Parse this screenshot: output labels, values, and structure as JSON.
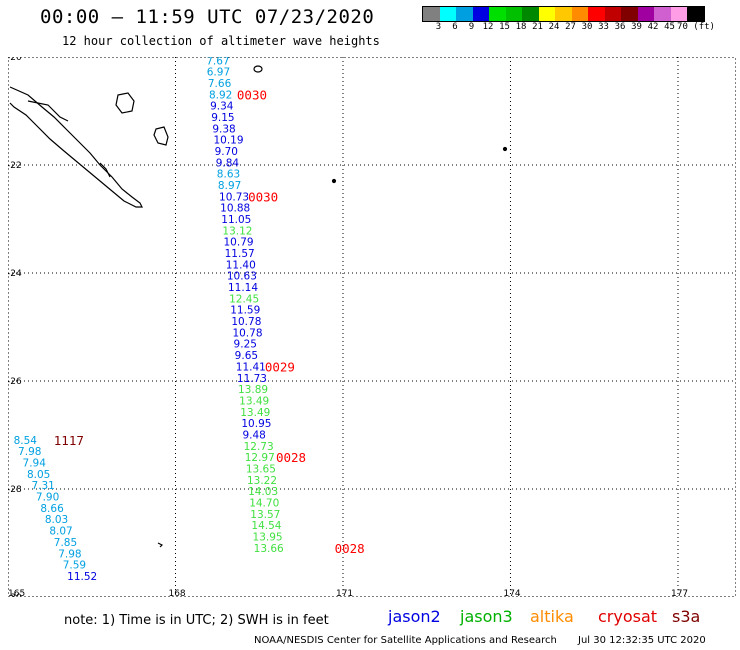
{
  "header": {
    "title": "00:00 – 11:59 UTC 07/23/2020",
    "subtitle": "12 hour collection of altimeter wave heights"
  },
  "colorbar": {
    "swatches": [
      "#808080",
      "#00ffff",
      "#00a0e0",
      "#0000e0",
      "#00e000",
      "#00c000",
      "#008800",
      "#ffff00",
      "#ffc800",
      "#ff8c00",
      "#ff0000",
      "#c00000",
      "#800000",
      "#a000a0",
      "#d060d0",
      "#ff9ee6",
      "#000000"
    ],
    "labels": [
      "3",
      "6",
      "9",
      "12",
      "15",
      "18",
      "21",
      "24",
      "27",
      "30",
      "33",
      "36",
      "39",
      "42",
      "45",
      "70 (ft)"
    ]
  },
  "map": {
    "lon_ticks": [
      "165",
      "168",
      "171",
      "174",
      "177"
    ],
    "lat_ticks": [
      "-20",
      "-22",
      "-24",
      "-26",
      "-28",
      "-30"
    ],
    "lon_range": [
      165,
      178
    ],
    "lat_range": [
      -20,
      -30
    ]
  },
  "tracks": [
    {
      "satellite": "jason2-track-a",
      "points": [
        {
          "lon": 168.55,
          "lat": -20.06,
          "v": "7.67",
          "c": "#00a0e0"
        },
        {
          "lon": 168.56,
          "lat": -20.27,
          "v": "6.97",
          "c": "#00a0e0"
        },
        {
          "lon": 168.58,
          "lat": -20.48,
          "v": "7.66",
          "c": "#00a0e0"
        },
        {
          "lon": 168.6,
          "lat": -20.69,
          "v": "8.92",
          "c": "#00a0e0"
        },
        {
          "lon": 168.62,
          "lat": -20.9,
          "v": "9.34",
          "c": "#0000e0"
        },
        {
          "lon": 168.64,
          "lat": -21.11,
          "v": "9.15",
          "c": "#0000e0"
        },
        {
          "lon": 168.66,
          "lat": -21.32,
          "v": "9.38",
          "c": "#0000e0"
        },
        {
          "lon": 168.68,
          "lat": -21.53,
          "v": "10.19",
          "c": "#0000e0"
        },
        {
          "lon": 168.7,
          "lat": -21.74,
          "v": "9.70",
          "c": "#0000e0"
        },
        {
          "lon": 168.72,
          "lat": -21.95,
          "v": "9.84",
          "c": "#0000e0"
        },
        {
          "lon": 168.74,
          "lat": -22.16,
          "v": "8.63",
          "c": "#00a0e0"
        },
        {
          "lon": 168.76,
          "lat": -22.37,
          "v": "8.97",
          "c": "#00a0e0"
        },
        {
          "lon": 168.78,
          "lat": -22.58,
          "v": "10.73",
          "c": "#0000e0"
        },
        {
          "lon": 168.8,
          "lat": -22.79,
          "v": "10.88",
          "c": "#0000e0"
        },
        {
          "lon": 168.82,
          "lat": -23.0,
          "v": "11.05",
          "c": "#0000e0"
        },
        {
          "lon": 168.84,
          "lat": -23.21,
          "v": "13.12",
          "c": "#40e040"
        },
        {
          "lon": 168.86,
          "lat": -23.42,
          "v": "10.79",
          "c": "#0000e0"
        },
        {
          "lon": 168.88,
          "lat": -23.63,
          "v": "11.57",
          "c": "#0000e0"
        },
        {
          "lon": 168.9,
          "lat": -23.84,
          "v": "11.40",
          "c": "#0000e0"
        },
        {
          "lon": 168.92,
          "lat": -24.05,
          "v": "10.63",
          "c": "#0000e0"
        },
        {
          "lon": 168.94,
          "lat": -24.26,
          "v": "11.14",
          "c": "#0000e0"
        },
        {
          "lon": 168.96,
          "lat": -24.47,
          "v": "12.45",
          "c": "#40e040"
        },
        {
          "lon": 168.98,
          "lat": -24.68,
          "v": "11.59",
          "c": "#0000e0"
        },
        {
          "lon": 169.0,
          "lat": -24.89,
          "v": "10.78",
          "c": "#0000e0"
        },
        {
          "lon": 169.02,
          "lat": -25.1,
          "v": "10.78",
          "c": "#0000e0"
        },
        {
          "lon": 169.04,
          "lat": -25.31,
          "v": "9.25",
          "c": "#0000e0"
        },
        {
          "lon": 169.06,
          "lat": -25.52,
          "v": "9.65",
          "c": "#0000e0"
        },
        {
          "lon": 169.08,
          "lat": -25.73,
          "v": "11.41",
          "c": "#0000e0"
        },
        {
          "lon": 169.1,
          "lat": -25.94,
          "v": "11.73",
          "c": "#0000e0"
        },
        {
          "lon": 169.12,
          "lat": -26.15,
          "v": "13.89",
          "c": "#40e040"
        },
        {
          "lon": 169.14,
          "lat": -26.36,
          "v": "13.49",
          "c": "#40e040"
        },
        {
          "lon": 169.16,
          "lat": -26.57,
          "v": "13.49",
          "c": "#40e040"
        },
        {
          "lon": 169.18,
          "lat": -26.78,
          "v": "10.95",
          "c": "#0000e0"
        },
        {
          "lon": 169.2,
          "lat": -26.99,
          "v": "9.48",
          "c": "#0000e0"
        },
        {
          "lon": 169.22,
          "lat": -27.2,
          "v": "12.73",
          "c": "#40e040"
        },
        {
          "lon": 169.24,
          "lat": -27.41,
          "v": "12.97",
          "c": "#40e040"
        },
        {
          "lon": 169.26,
          "lat": -27.62,
          "v": "13.65",
          "c": "#40e040"
        },
        {
          "lon": 169.28,
          "lat": -27.83,
          "v": "13.22",
          "c": "#40e040"
        },
        {
          "lon": 169.3,
          "lat": -28.04,
          "v": "14.03",
          "c": "#40e040"
        },
        {
          "lon": 169.32,
          "lat": -28.25,
          "v": "14.70",
          "c": "#40e040"
        },
        {
          "lon": 169.34,
          "lat": -28.46,
          "v": "13.57",
          "c": "#40e040"
        },
        {
          "lon": 169.36,
          "lat": -28.67,
          "v": "14.54",
          "c": "#40e040"
        },
        {
          "lon": 169.38,
          "lat": -28.88,
          "v": "13.95",
          "c": "#40e040"
        },
        {
          "lon": 169.4,
          "lat": -29.09,
          "v": "13.66",
          "c": "#40e040"
        }
      ]
    },
    {
      "satellite": "jason2-track-b",
      "points": [
        {
          "lon": 165.1,
          "lat": -27.09,
          "v": "8.54",
          "c": "#00a0e0"
        },
        {
          "lon": 165.18,
          "lat": -27.3,
          "v": "7.98",
          "c": "#00a0e0"
        },
        {
          "lon": 165.26,
          "lat": -27.51,
          "v": "7.94",
          "c": "#00a0e0"
        },
        {
          "lon": 165.34,
          "lat": -27.72,
          "v": "8.05",
          "c": "#00a0e0"
        },
        {
          "lon": 165.42,
          "lat": -27.93,
          "v": "7.31",
          "c": "#00a0e0"
        },
        {
          "lon": 165.5,
          "lat": -28.14,
          "v": "7.90",
          "c": "#00a0e0"
        },
        {
          "lon": 165.58,
          "lat": -28.35,
          "v": "8.66",
          "c": "#00a0e0"
        },
        {
          "lon": 165.66,
          "lat": -28.56,
          "v": "8.03",
          "c": "#00a0e0"
        },
        {
          "lon": 165.74,
          "lat": -28.77,
          "v": "8.07",
          "c": "#00a0e0"
        },
        {
          "lon": 165.82,
          "lat": -28.98,
          "v": "7.85",
          "c": "#00a0e0"
        },
        {
          "lon": 165.9,
          "lat": -29.19,
          "v": "7.98",
          "c": "#00a0e0"
        },
        {
          "lon": 165.98,
          "lat": -29.4,
          "v": "7.59",
          "c": "#00a0e0"
        },
        {
          "lon": 166.06,
          "lat": -29.61,
          "v": "11.52",
          "c": "#0000e0"
        }
      ]
    }
  ],
  "pass_labels": [
    {
      "text": "0030",
      "lon": 169.1,
      "lat": -20.69,
      "c": "#ff0000"
    },
    {
      "text": "0030",
      "lon": 169.3,
      "lat": -22.58,
      "c": "#ff0000"
    },
    {
      "text": "0029",
      "lon": 169.6,
      "lat": -25.73,
      "c": "#ff0000"
    },
    {
      "text": "0028",
      "lon": 169.8,
      "lat": -27.41,
      "c": "#ff0000"
    },
    {
      "text": "0028",
      "lon": 170.85,
      "lat": -29.09,
      "c": "#ff0000"
    },
    {
      "text": "1117",
      "lon": 165.82,
      "lat": -27.09,
      "c": "#800000"
    }
  ],
  "footer": {
    "note": "note: 1) Time is in UTC; 2) SWH is in feet",
    "legend": [
      {
        "name": "jason2",
        "color": "#0000e0"
      },
      {
        "name": "jason3",
        "color": "#00b000"
      },
      {
        "name": "altika",
        "color": "#ff8c00"
      },
      {
        "name": "cryosat",
        "color": "#e00000"
      },
      {
        "name": "s3a",
        "color": "#800000"
      }
    ],
    "credit": "NOAA/NESDIS Center for Satellite Applications and Research",
    "generated": "Jul 30 12:32:35 UTC 2020"
  }
}
